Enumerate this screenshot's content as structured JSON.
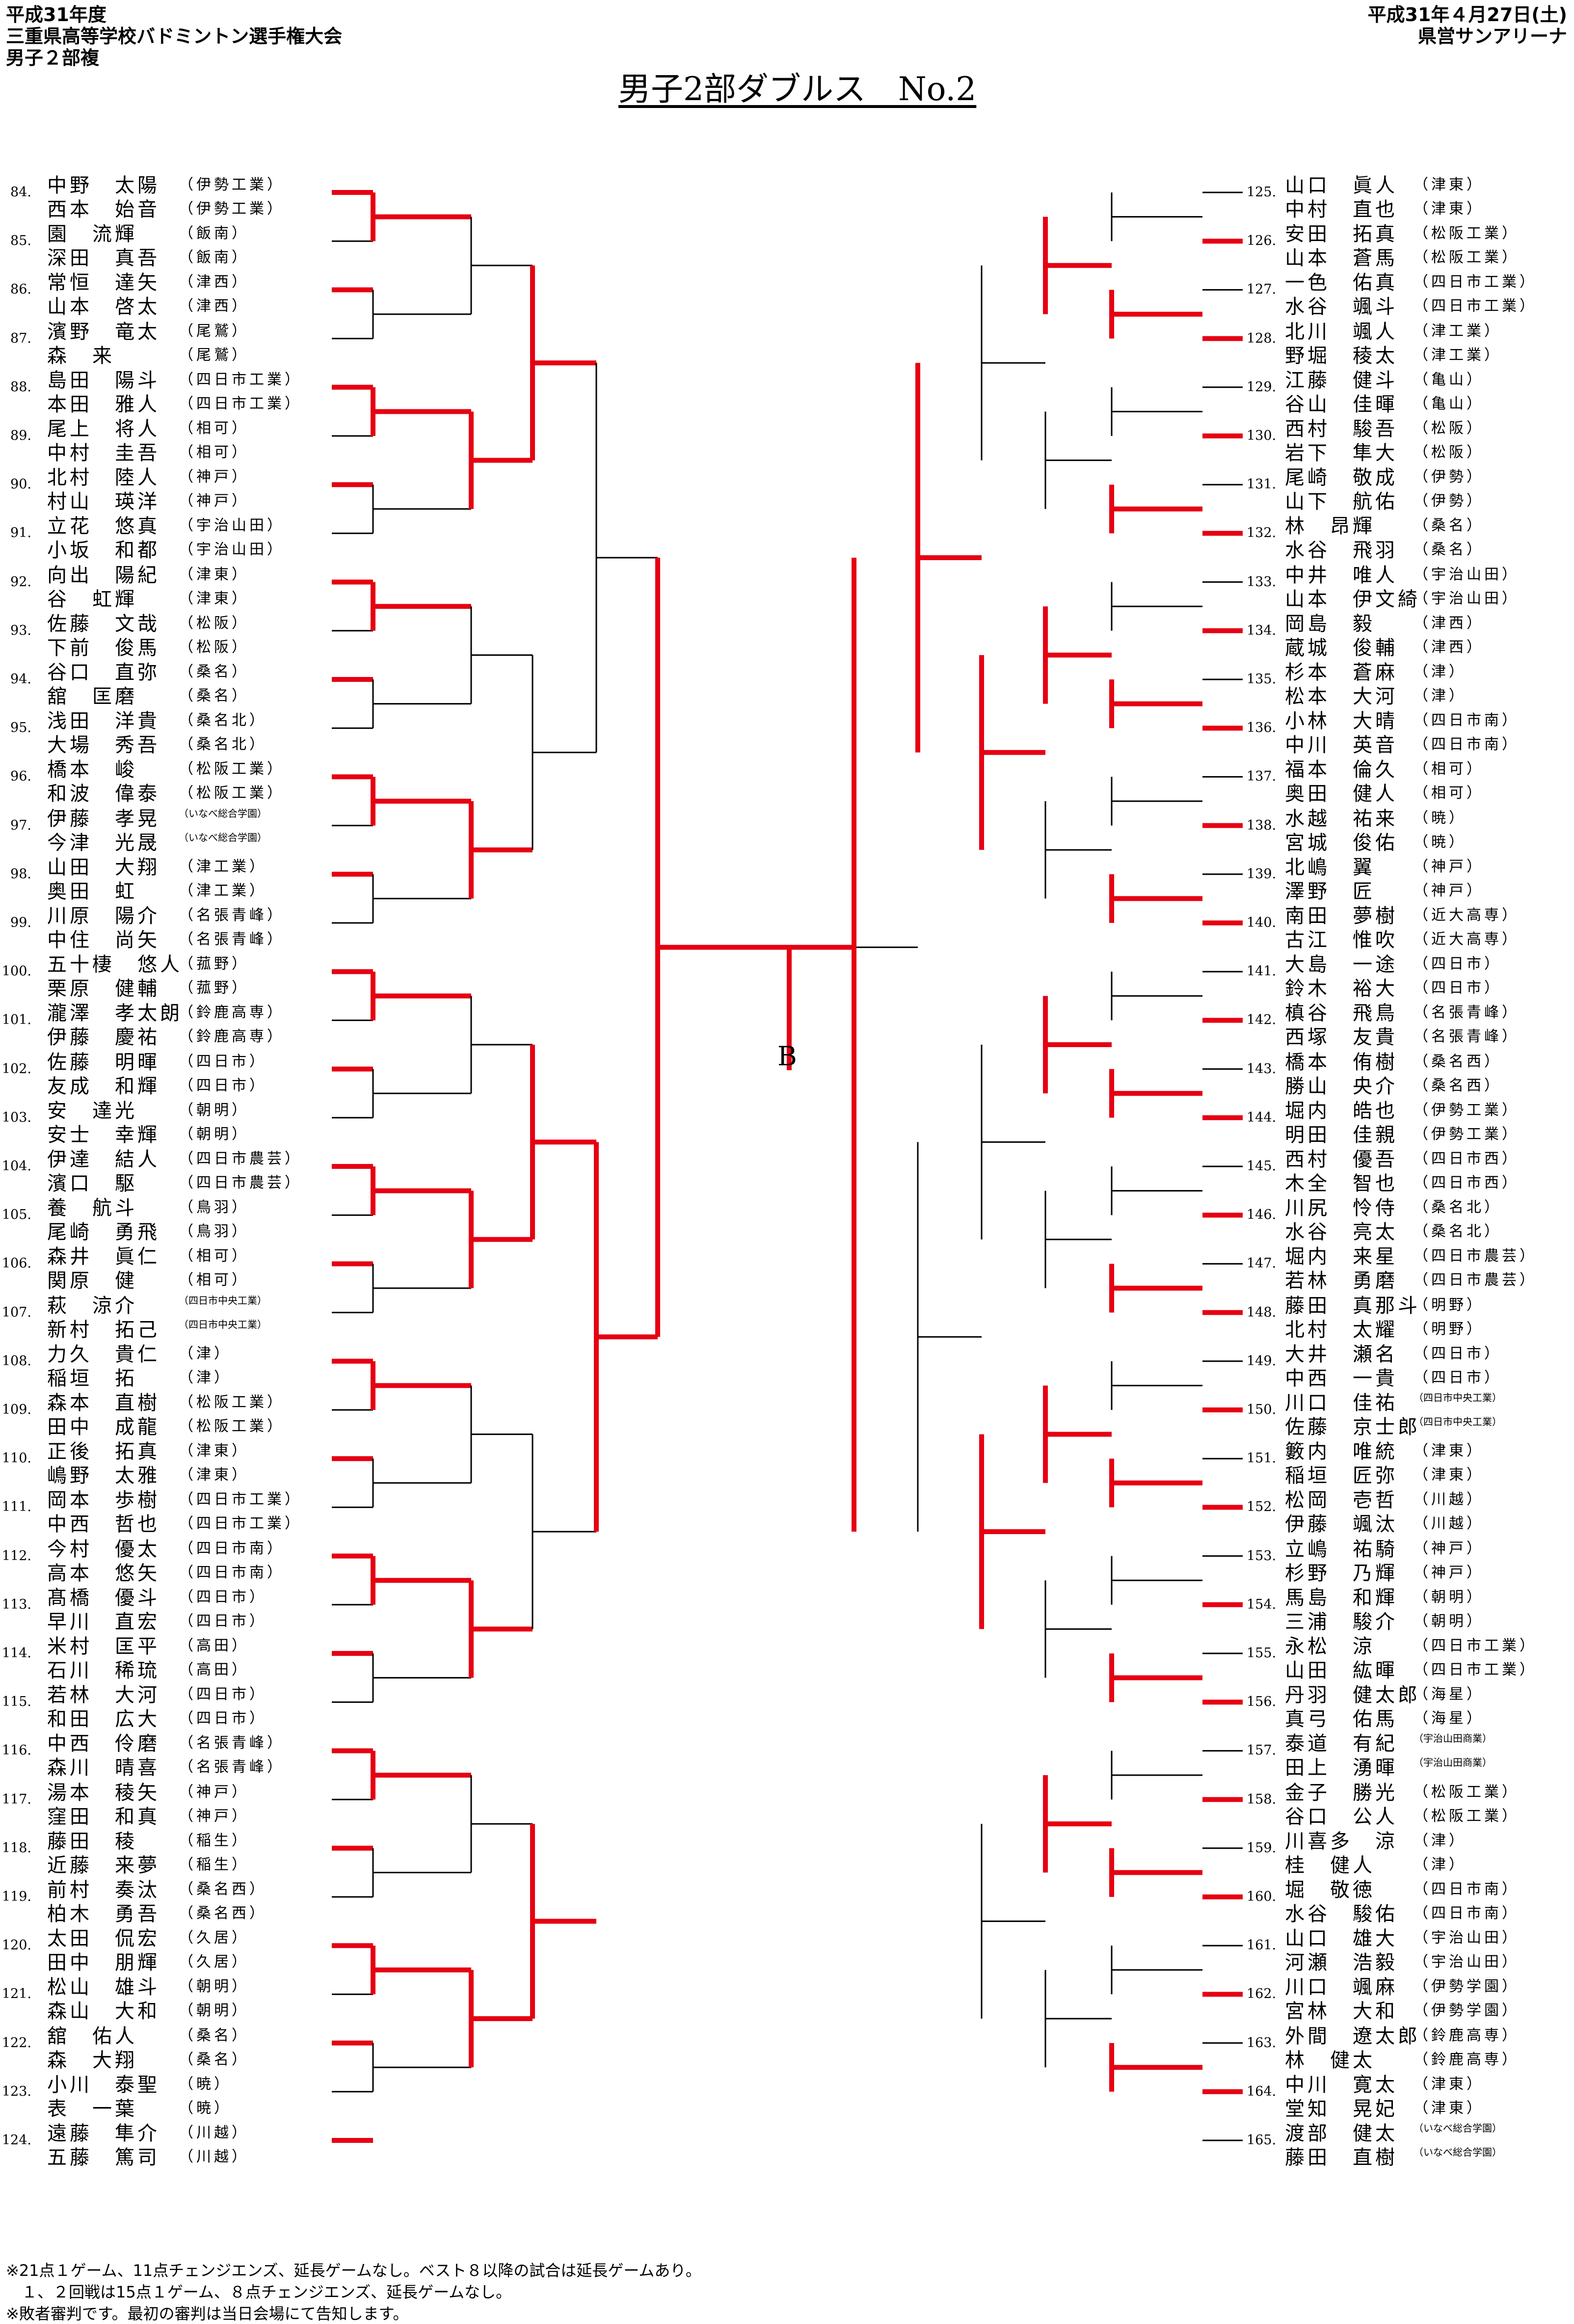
{
  "header": {
    "year": "平成31年度",
    "event": "三重県高等学校バドミントン選手権大会",
    "division": "男子２部複",
    "date": "平成31年４月27日(土)",
    "venue": "県営サンアリーナ"
  },
  "title": "男子2部ダブルス　No.2",
  "final_marker": "B",
  "notes": [
    "※21点１ゲーム、11点チェンジエンズ、延長ゲームなし。ベスト８以降の試合は延長ゲームあり。",
    "　１、２回戦は15点１ゲーム、８点チェンジエンズ、延長ゲームなし。",
    "※敗者審判です。最初の審判は当日会場にて告知します。"
  ],
  "left": [
    {
      "no": "84.",
      "p": [
        [
          "中野 太陽",
          "伊勢工業"
        ],
        [
          "西本 始音",
          "伊勢工業"
        ]
      ]
    },
    {
      "no": "85.",
      "p": [
        [
          "園 流輝",
          "飯南"
        ],
        [
          "深田 真吾",
          "飯南"
        ]
      ]
    },
    {
      "no": "86.",
      "p": [
        [
          "常恒 達矢",
          "津西"
        ],
        [
          "山本 啓太",
          "津西"
        ]
      ]
    },
    {
      "no": "87.",
      "p": [
        [
          "濱野 竜太",
          "尾鷲"
        ],
        [
          "森 来",
          "尾鷲"
        ]
      ]
    },
    {
      "no": "88.",
      "p": [
        [
          "島田 陽斗",
          "四日市工業"
        ],
        [
          "本田 雅人",
          "四日市工業"
        ]
      ]
    },
    {
      "no": "89.",
      "p": [
        [
          "尾上 将人",
          "相可"
        ],
        [
          "中村 圭吾",
          "相可"
        ]
      ]
    },
    {
      "no": "90.",
      "p": [
        [
          "北村 陸人",
          "神戸"
        ],
        [
          "村山 瑛洋",
          "神戸"
        ]
      ]
    },
    {
      "no": "91.",
      "p": [
        [
          "立花 悠真",
          "宇治山田"
        ],
        [
          "小坂 和都",
          "宇治山田"
        ]
      ]
    },
    {
      "no": "92.",
      "p": [
        [
          "向出 陽紀",
          "津東"
        ],
        [
          "谷 虹輝",
          "津東"
        ]
      ]
    },
    {
      "no": "93.",
      "p": [
        [
          "佐藤 文哉",
          "松阪"
        ],
        [
          "下前 俊馬",
          "松阪"
        ]
      ]
    },
    {
      "no": "94.",
      "p": [
        [
          "谷口 直弥",
          "桑名"
        ],
        [
          "舘 匡磨",
          "桑名"
        ]
      ]
    },
    {
      "no": "95.",
      "p": [
        [
          "浅田 洋貴",
          "桑名北"
        ],
        [
          "大場 秀吾",
          "桑名北"
        ]
      ]
    },
    {
      "no": "96.",
      "p": [
        [
          "橋本 峻",
          "松阪工業"
        ],
        [
          "和波 偉泰",
          "松阪工業"
        ]
      ]
    },
    {
      "no": "97.",
      "p": [
        [
          "伊藤 孝晃",
          "いなべ総合学園"
        ],
        [
          "今津 光晟",
          "いなべ総合学園"
        ]
      ]
    },
    {
      "no": "98.",
      "p": [
        [
          "山田 大翔",
          "津工業"
        ],
        [
          "奥田 虹",
          "津工業"
        ]
      ]
    },
    {
      "no": "99.",
      "p": [
        [
          "川原 陽介",
          "名張青峰"
        ],
        [
          "中住 尚矢",
          "名張青峰"
        ]
      ]
    },
    {
      "no": "100.",
      "p": [
        [
          "五十棲 悠人",
          "菰野"
        ],
        [
          "栗原 健輔",
          "菰野"
        ]
      ]
    },
    {
      "no": "101.",
      "p": [
        [
          "瀧澤 孝太朗",
          "鈴鹿高専"
        ],
        [
          "伊藤 慶祐",
          "鈴鹿高専"
        ]
      ]
    },
    {
      "no": "102.",
      "p": [
        [
          "佐藤 明暉",
          "四日市"
        ],
        [
          "友成 和輝",
          "四日市"
        ]
      ]
    },
    {
      "no": "103.",
      "p": [
        [
          "安 達光",
          "朝明"
        ],
        [
          "安士 幸輝",
          "朝明"
        ]
      ]
    },
    {
      "no": "104.",
      "p": [
        [
          "伊達 結人",
          "四日市農芸"
        ],
        [
          "濱口 駆",
          "四日市農芸"
        ]
      ]
    },
    {
      "no": "105.",
      "p": [
        [
          "養 航斗",
          "鳥羽"
        ],
        [
          "尾崎 勇飛",
          "鳥羽"
        ]
      ]
    },
    {
      "no": "106.",
      "p": [
        [
          "森井 眞仁",
          "相可"
        ],
        [
          "関原 健",
          "相可"
        ]
      ]
    },
    {
      "no": "107.",
      "p": [
        [
          "萩 涼介",
          "四日市中央工業"
        ],
        [
          "新村 拓己",
          "四日市中央工業"
        ]
      ]
    },
    {
      "no": "108.",
      "p": [
        [
          "力久 貴仁",
          "津"
        ],
        [
          "稲垣 拓",
          "津"
        ]
      ]
    },
    {
      "no": "109.",
      "p": [
        [
          "森本 直樹",
          "松阪工業"
        ],
        [
          "田中 成龍",
          "松阪工業"
        ]
      ]
    },
    {
      "no": "110.",
      "p": [
        [
          "正後 拓真",
          "津東"
        ],
        [
          "嶋野 太雅",
          "津東"
        ]
      ]
    },
    {
      "no": "111.",
      "p": [
        [
          "岡本 歩樹",
          "四日市工業"
        ],
        [
          "中西 哲也",
          "四日市工業"
        ]
      ]
    },
    {
      "no": "112.",
      "p": [
        [
          "今村 優太",
          "四日市南"
        ],
        [
          "高本 悠矢",
          "四日市南"
        ]
      ]
    },
    {
      "no": "113.",
      "p": [
        [
          "髙橋 優斗",
          "四日市"
        ],
        [
          "早川 直宏",
          "四日市"
        ]
      ]
    },
    {
      "no": "114.",
      "p": [
        [
          "米村 匡平",
          "高田"
        ],
        [
          "石川 稀琉",
          "高田"
        ]
      ]
    },
    {
      "no": "115.",
      "p": [
        [
          "若林 大河",
          "四日市"
        ],
        [
          "和田 広大",
          "四日市"
        ]
      ]
    },
    {
      "no": "116.",
      "p": [
        [
          "中西 伶磨",
          "名張青峰"
        ],
        [
          "森川 晴喜",
          "名張青峰"
        ]
      ]
    },
    {
      "no": "117.",
      "p": [
        [
          "湯本 稜矢",
          "神戸"
        ],
        [
          "窪田 和真",
          "神戸"
        ]
      ]
    },
    {
      "no": "118.",
      "p": [
        [
          "藤田 稜",
          "稲生"
        ],
        [
          "近藤 来夢",
          "稲生"
        ]
      ]
    },
    {
      "no": "119.",
      "p": [
        [
          "前村 奏汰",
          "桑名西"
        ],
        [
          "柏木 勇吾",
          "桑名西"
        ]
      ]
    },
    {
      "no": "120.",
      "p": [
        [
          "太田 侃宏",
          "久居"
        ],
        [
          "田中 朋輝",
          "久居"
        ]
      ]
    },
    {
      "no": "121.",
      "p": [
        [
          "松山 雄斗",
          "朝明"
        ],
        [
          "森山 大和",
          "朝明"
        ]
      ]
    },
    {
      "no": "122.",
      "p": [
        [
          "舘 佑人",
          "桑名"
        ],
        [
          "森 大翔",
          "桑名"
        ]
      ]
    },
    {
      "no": "123.",
      "p": [
        [
          "小川 泰聖",
          "暁"
        ],
        [
          "表 一葉",
          "暁"
        ]
      ]
    },
    {
      "no": "124.",
      "p": [
        [
          "遠藤 隼介",
          "川越"
        ],
        [
          "五藤 篤司",
          "川越"
        ]
      ]
    }
  ],
  "right": [
    {
      "no": "125.",
      "p": [
        [
          "山口 眞人",
          "津東"
        ],
        [
          "中村 直也",
          "津東"
        ]
      ]
    },
    {
      "no": "126.",
      "p": [
        [
          "安田 拓真",
          "松阪工業"
        ],
        [
          "山本 蒼馬",
          "松阪工業"
        ]
      ]
    },
    {
      "no": "127.",
      "p": [
        [
          "一色 佑真",
          "四日市工業"
        ],
        [
          "水谷 颯斗",
          "四日市工業"
        ]
      ]
    },
    {
      "no": "128.",
      "p": [
        [
          "北川 颯人",
          "津工業"
        ],
        [
          "野堀 稜太",
          "津工業"
        ]
      ]
    },
    {
      "no": "129.",
      "p": [
        [
          "江藤 健斗",
          "亀山"
        ],
        [
          "谷山 佳暉",
          "亀山"
        ]
      ]
    },
    {
      "no": "130.",
      "p": [
        [
          "西村 駿吾",
          "松阪"
        ],
        [
          "岩下 隼大",
          "松阪"
        ]
      ]
    },
    {
      "no": "131.",
      "p": [
        [
          "尾崎 敬成",
          "伊勢"
        ],
        [
          "山下 航佑",
          "伊勢"
        ]
      ]
    },
    {
      "no": "132.",
      "p": [
        [
          "林 昂輝",
          "桑名"
        ],
        [
          "水谷 飛羽",
          "桑名"
        ]
      ]
    },
    {
      "no": "133.",
      "p": [
        [
          "中井 唯人",
          "宇治山田"
        ],
        [
          "山本 伊文綺",
          "宇治山田"
        ]
      ]
    },
    {
      "no": "134.",
      "p": [
        [
          "岡島 毅",
          "津西"
        ],
        [
          "蔵城 俊輔",
          "津西"
        ]
      ]
    },
    {
      "no": "135.",
      "p": [
        [
          "杉本 蒼麻",
          "津"
        ],
        [
          "松本 大河",
          "津"
        ]
      ]
    },
    {
      "no": "136.",
      "p": [
        [
          "小林 大晴",
          "四日市南"
        ],
        [
          "中川 英音",
          "四日市南"
        ]
      ]
    },
    {
      "no": "137.",
      "p": [
        [
          "福本 倫久",
          "相可"
        ],
        [
          "奥田 健人",
          "相可"
        ]
      ]
    },
    {
      "no": "138.",
      "p": [
        [
          "水越 祐来",
          "暁"
        ],
        [
          "宮城 俊佑",
          "暁"
        ]
      ]
    },
    {
      "no": "139.",
      "p": [
        [
          "北嶋 翼",
          "神戸"
        ],
        [
          "澤野 匠",
          "神戸"
        ]
      ]
    },
    {
      "no": "140.",
      "p": [
        [
          "南田 夢樹",
          "近大高専"
        ],
        [
          "古江 惟吹",
          "近大高専"
        ]
      ]
    },
    {
      "no": "141.",
      "p": [
        [
          "大島 一途",
          "四日市"
        ],
        [
          "鈴木 裕大",
          "四日市"
        ]
      ]
    },
    {
      "no": "142.",
      "p": [
        [
          "槙谷 飛鳥",
          "名張青峰"
        ],
        [
          "西塚 友貴",
          "名張青峰"
        ]
      ]
    },
    {
      "no": "143.",
      "p": [
        [
          "橋本 侑樹",
          "桑名西"
        ],
        [
          "勝山 央介",
          "桑名西"
        ]
      ]
    },
    {
      "no": "144.",
      "p": [
        [
          "堀内 皓也",
          "伊勢工業"
        ],
        [
          "明田 佳親",
          "伊勢工業"
        ]
      ]
    },
    {
      "no": "145.",
      "p": [
        [
          "西村 優吾",
          "四日市西"
        ],
        [
          "木全 智也",
          "四日市西"
        ]
      ]
    },
    {
      "no": "146.",
      "p": [
        [
          "川尻 怜侍",
          "桑名北"
        ],
        [
          "水谷 亮太",
          "桑名北"
        ]
      ]
    },
    {
      "no": "147.",
      "p": [
        [
          "堀内 来星",
          "四日市農芸"
        ],
        [
          "若林 勇磨",
          "四日市農芸"
        ]
      ]
    },
    {
      "no": "148.",
      "p": [
        [
          "藤田 真那斗",
          "明野"
        ],
        [
          "北村 太耀",
          "明野"
        ]
      ]
    },
    {
      "no": "149.",
      "p": [
        [
          "大井 瀬名",
          "四日市"
        ],
        [
          "中西 一貴",
          "四日市"
        ]
      ]
    },
    {
      "no": "150.",
      "p": [
        [
          "川口 佳祐",
          "四日市中央工業"
        ],
        [
          "佐藤 京士郎",
          "四日市中央工業"
        ]
      ]
    },
    {
      "no": "151.",
      "p": [
        [
          "籔内 唯統",
          "津東"
        ],
        [
          "稲垣 匠弥",
          "津東"
        ]
      ]
    },
    {
      "no": "152.",
      "p": [
        [
          "松岡 壱哲",
          "川越"
        ],
        [
          "伊藤 颯汰",
          "川越"
        ]
      ]
    },
    {
      "no": "153.",
      "p": [
        [
          "立嶋 祐騎",
          "神戸"
        ],
        [
          "杉野 乃輝",
          "神戸"
        ]
      ]
    },
    {
      "no": "154.",
      "p": [
        [
          "馬島 和輝",
          "朝明"
        ],
        [
          "三浦 駿介",
          "朝明"
        ]
      ]
    },
    {
      "no": "155.",
      "p": [
        [
          "永松 涼",
          "四日市工業"
        ],
        [
          "山田 紘暉",
          "四日市工業"
        ]
      ]
    },
    {
      "no": "156.",
      "p": [
        [
          "丹羽 健太郎",
          "海星"
        ],
        [
          "真弓 佑馬",
          "海星"
        ]
      ]
    },
    {
      "no": "157.",
      "p": [
        [
          "泰道 有紀",
          "宇治山田商業"
        ],
        [
          "田上 湧暉",
          "宇治山田商業"
        ]
      ]
    },
    {
      "no": "158.",
      "p": [
        [
          "金子 勝光",
          "松阪工業"
        ],
        [
          "谷口 公人",
          "松阪工業"
        ]
      ]
    },
    {
      "no": "159.",
      "p": [
        [
          "川喜多 涼",
          "津"
        ],
        [
          "桂 健人",
          "津"
        ]
      ]
    },
    {
      "no": "160.",
      "p": [
        [
          "堀 敬徳",
          "四日市南"
        ],
        [
          "水谷 駿佑",
          "四日市南"
        ]
      ]
    },
    {
      "no": "161.",
      "p": [
        [
          "山口 雄大",
          "宇治山田"
        ],
        [
          "河瀬 浩毅",
          "宇治山田"
        ]
      ]
    },
    {
      "no": "162.",
      "p": [
        [
          "川口 颯麻",
          "伊勢学園"
        ],
        [
          "宮林 大和",
          "伊勢学園"
        ]
      ]
    },
    {
      "no": "163.",
      "p": [
        [
          "外間 遼太郎",
          "鈴鹿高専"
        ],
        [
          "林 健太",
          "鈴鹿高専"
        ]
      ]
    },
    {
      "no": "164.",
      "p": [
        [
          "中川 寛太",
          "津東"
        ],
        [
          "堂知 晃妃",
          "津東"
        ]
      ]
    },
    {
      "no": "165.",
      "p": [
        [
          "渡部 健太",
          "いなべ総合学園"
        ],
        [
          "藤田 直樹",
          "いなべ総合学園"
        ]
      ]
    }
  ]
}
